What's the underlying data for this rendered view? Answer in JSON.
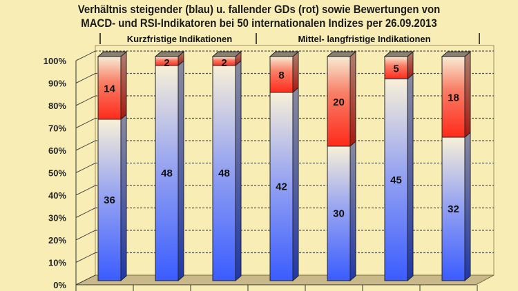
{
  "chart_data": {
    "type": "bar",
    "stacked": true,
    "percent_stacked": true,
    "title_line1": "Verhältnis steigender (blau) u. fallender GDs (rot) sowie Bewertungen von",
    "title_line2": "MACD- und RSI-Indikatoren bei 50 internationalen Indizes per 26.09.2013",
    "groups": [
      {
        "label": "Kurzfristige Indikationen",
        "bars": [
          0,
          1,
          2
        ]
      },
      {
        "label": "Mittel- langfristige Indikationen",
        "bars": [
          3,
          4,
          5,
          6
        ]
      }
    ],
    "series": [
      {
        "color": "#3a5cff",
        "values": [
          36,
          48,
          48,
          42,
          30,
          45,
          32
        ]
      },
      {
        "color": "#ff2a1a",
        "values": [
          14,
          2,
          2,
          8,
          20,
          5,
          18
        ]
      }
    ],
    "yticks": [
      "0%",
      "10%",
      "20%",
      "30%",
      "40%",
      "50%",
      "60%",
      "70%",
      "80%",
      "90%",
      "100%"
    ],
    "ylim": [
      0,
      100
    ],
    "grid": true,
    "background": "#f9edb6"
  }
}
